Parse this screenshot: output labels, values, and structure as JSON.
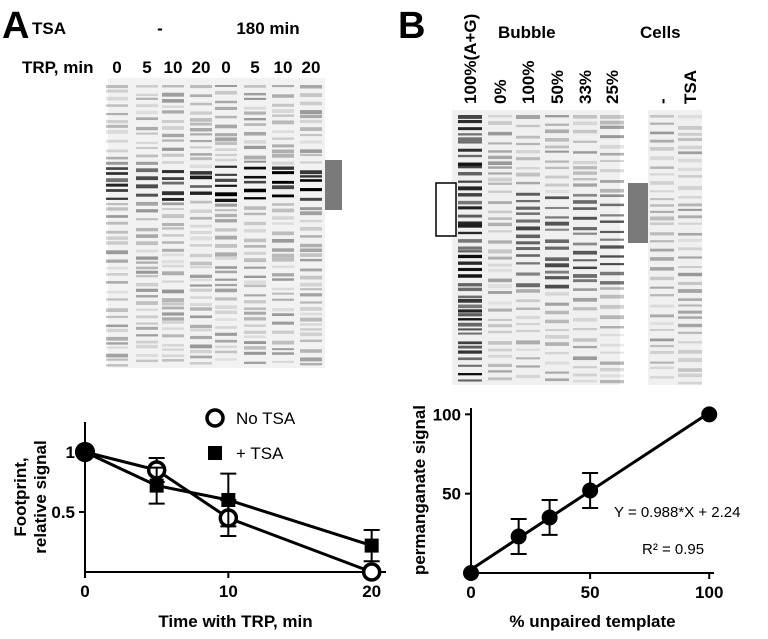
{
  "panels": {
    "a": "A",
    "b": "B"
  },
  "gel_a": {
    "row1_label": "TSA",
    "row1_groups": [
      "-",
      "180 min"
    ],
    "row2_label": "TRP, min",
    "lanes": [
      "0",
      "5",
      "10",
      "20",
      "0",
      "5",
      "10",
      "20"
    ]
  },
  "gel_b": {
    "lanes": [
      "100%(A+G)",
      "0%",
      "100%",
      "50%",
      "33%",
      "25%",
      "-",
      "TSA"
    ],
    "groups": [
      "Bubble",
      "Cells"
    ]
  },
  "chart_data": [
    {
      "type": "line",
      "x": [
        0,
        5,
        10,
        20
      ],
      "series": [
        {
          "name": "No TSA",
          "marker": "open-circle",
          "color": "#000000",
          "values": [
            1,
            0.85,
            0.45,
            0
          ],
          "errors": [
            null,
            0.1,
            0.15,
            null
          ]
        },
        {
          "name": "+ TSA",
          "marker": "square",
          "color": "#000000",
          "values": [
            1,
            0.72,
            0.6,
            0.22
          ],
          "errors": [
            null,
            0.15,
            0.22,
            0.13
          ]
        }
      ],
      "xlim": [
        0,
        21
      ],
      "ylim": [
        0,
        1.25
      ],
      "xticks": [
        0,
        10,
        20
      ],
      "yticks": [
        0.5,
        1
      ],
      "x_label": "Time with TRP, min",
      "y_label": [
        "Footprint,",
        "relative signal"
      ],
      "legend": "top-right"
    },
    {
      "type": "scatter",
      "x": [
        0,
        20,
        33,
        50,
        100
      ],
      "values": [
        0,
        23,
        35,
        52,
        100
      ],
      "errors": [
        null,
        11,
        11,
        11,
        null
      ],
      "color": "#000000",
      "fit": {
        "slope": 0.988,
        "intercept": 2.24
      },
      "xlim": [
        0,
        102
      ],
      "ylim": [
        0,
        104
      ],
      "xticks": [
        0,
        50,
        100
      ],
      "yticks": [
        50,
        100
      ],
      "x_label": "% unpaired template",
      "y_label": "permanganate signal",
      "annotations": [
        "Y = 0.988*X + 2.24",
        "R² = 0.95"
      ]
    }
  ]
}
